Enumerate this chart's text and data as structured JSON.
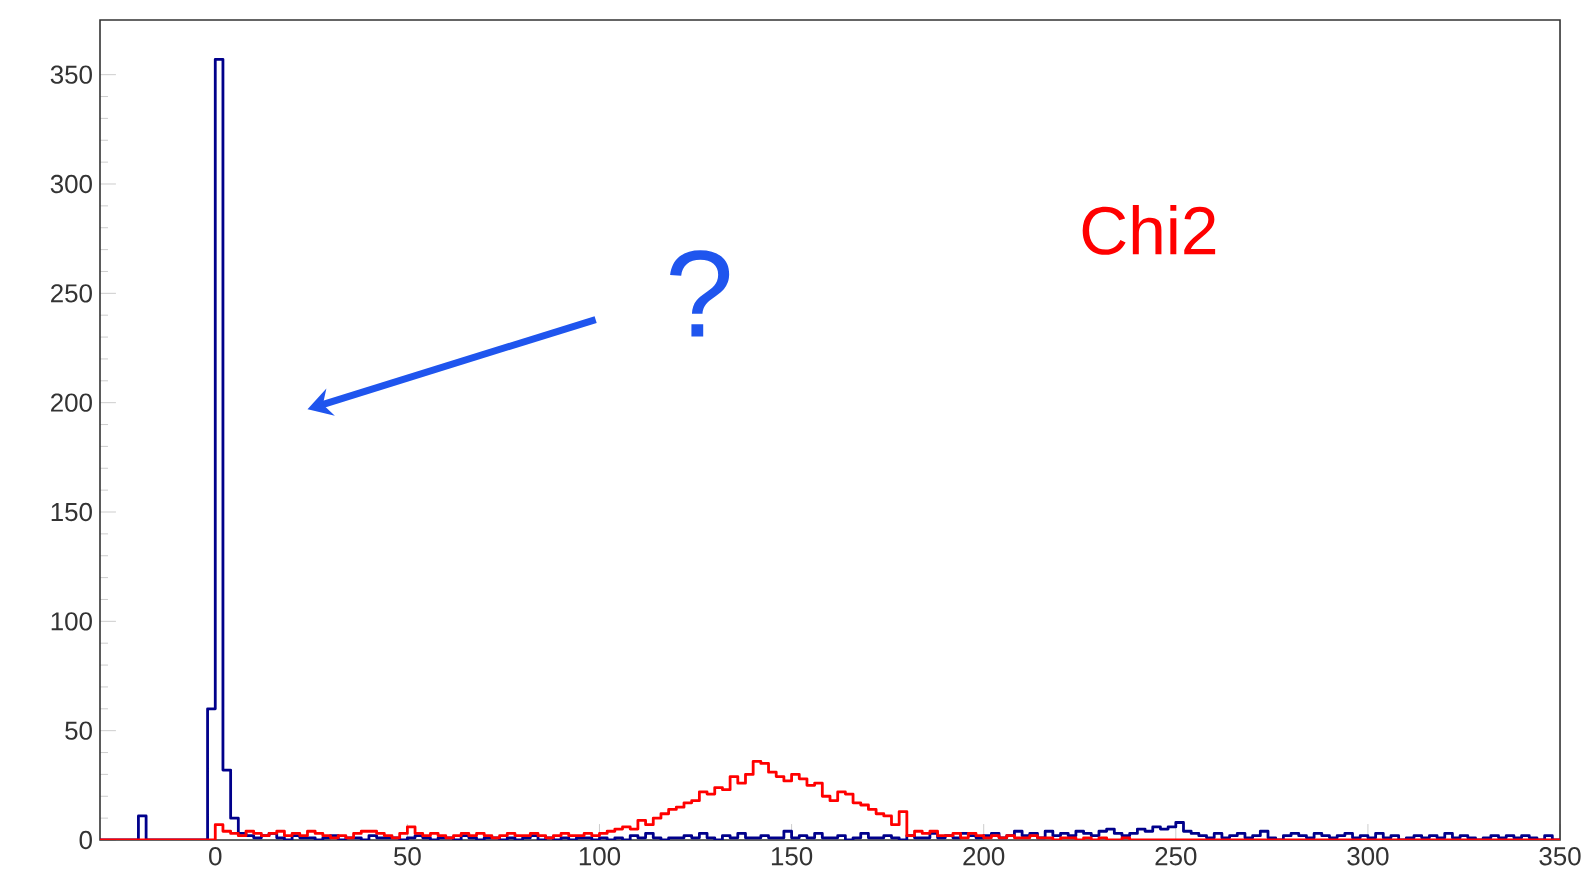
{
  "chart_data": {
    "type": "histogram",
    "bins": [
      -30,
      -28,
      -26,
      -24,
      -22,
      -20,
      -18,
      -16,
      -14,
      -12,
      -10,
      -8,
      -6,
      -4,
      -2,
      0,
      2,
      4,
      6,
      8,
      10,
      12,
      14,
      16,
      18,
      20,
      22,
      24,
      26,
      28,
      30,
      32,
      34,
      36,
      38,
      40,
      42,
      44,
      46,
      48,
      50,
      52,
      54,
      56,
      58,
      60,
      62,
      64,
      66,
      68,
      70,
      72,
      74,
      76,
      78,
      80,
      82,
      84,
      86,
      88,
      90,
      92,
      94,
      96,
      98,
      100,
      102,
      104,
      106,
      108,
      110,
      112,
      114,
      116,
      118,
      120,
      122,
      124,
      126,
      128,
      130,
      132,
      134,
      136,
      138,
      140,
      142,
      144,
      146,
      148,
      150,
      152,
      154,
      156,
      158,
      160,
      162,
      164,
      166,
      168,
      170,
      172,
      174,
      176,
      178,
      180,
      182,
      184,
      186,
      188,
      190,
      192,
      194,
      196,
      198,
      200,
      202,
      204,
      206,
      208,
      210,
      212,
      214,
      216,
      218,
      220,
      222,
      224,
      226,
      228,
      230,
      232,
      234,
      236,
      238,
      240,
      242,
      244,
      246,
      248,
      250,
      252,
      254,
      256,
      258,
      260,
      262,
      264,
      266,
      268,
      270,
      272,
      274,
      276,
      278,
      280,
      282,
      284,
      286,
      288,
      290,
      292,
      294,
      296,
      298,
      300,
      302,
      304,
      306,
      308,
      310,
      312,
      314,
      316,
      318,
      320,
      322,
      324,
      326,
      328,
      330,
      332,
      334,
      336,
      338,
      340,
      342,
      344,
      346,
      348,
      350
    ],
    "series": [
      {
        "color": "#00008b",
        "values": [
          0,
          0,
          0,
          0,
          0,
          11,
          0,
          0,
          0,
          0,
          0,
          0,
          0,
          0,
          60,
          357,
          32,
          10,
          3,
          2,
          1,
          2,
          3,
          1,
          0,
          2,
          1,
          1,
          0,
          1,
          2,
          0,
          1,
          1,
          0,
          2,
          1,
          1,
          1,
          0,
          1,
          2,
          1,
          0,
          1,
          1,
          0,
          2,
          1,
          0,
          1,
          1,
          0,
          1,
          0,
          1,
          2,
          0,
          1,
          0,
          1,
          0,
          1,
          1,
          0,
          1,
          0,
          1,
          0,
          2,
          1,
          3,
          1,
          0,
          1,
          1,
          2,
          1,
          3,
          1,
          0,
          2,
          1,
          3,
          1,
          1,
          2,
          1,
          1,
          4,
          1,
          2,
          1,
          3,
          1,
          1,
          2,
          0,
          1,
          3,
          1,
          1,
          2,
          1,
          0,
          2,
          1,
          1,
          3,
          1,
          2,
          1,
          3,
          2,
          1,
          2,
          3,
          1,
          2,
          4,
          2,
          3,
          1,
          4,
          2,
          3,
          2,
          4,
          3,
          2,
          4,
          5,
          3,
          2,
          3,
          5,
          4,
          6,
          5,
          6,
          8,
          4,
          3,
          2,
          1,
          3,
          1,
          2,
          3,
          1,
          2,
          4,
          1,
          0,
          2,
          3,
          2,
          1,
          3,
          2,
          1,
          2,
          3,
          1,
          2,
          1,
          3,
          1,
          2,
          0,
          1,
          2,
          1,
          2,
          1,
          3,
          1,
          2,
          1,
          0,
          1,
          2,
          1,
          2,
          1,
          2,
          1,
          0,
          2,
          0
        ]
      },
      {
        "name": "Chi2",
        "color": "#ff0000",
        "values": [
          0,
          0,
          0,
          0,
          0,
          0,
          0,
          0,
          0,
          0,
          0,
          0,
          0,
          0,
          0,
          7,
          4,
          3,
          2,
          4,
          3,
          2,
          3,
          4,
          2,
          3,
          2,
          4,
          3,
          2,
          1,
          2,
          1,
          3,
          4,
          4,
          3,
          2,
          1,
          3,
          6,
          3,
          2,
          3,
          2,
          1,
          2,
          3,
          2,
          3,
          2,
          1,
          2,
          3,
          2,
          2,
          3,
          2,
          1,
          2,
          3,
          2,
          2,
          3,
          2,
          3,
          4,
          5,
          6,
          5,
          9,
          7,
          10,
          12,
          14,
          15,
          17,
          18,
          22,
          21,
          24,
          23,
          29,
          26,
          30,
          36,
          35,
          31,
          29,
          27,
          30,
          28,
          25,
          26,
          20,
          18,
          22,
          21,
          17,
          16,
          14,
          12,
          11,
          7,
          13,
          2,
          4,
          3,
          4,
          2,
          2,
          3,
          1,
          3,
          2,
          1,
          2,
          1,
          2,
          1,
          1,
          2,
          1,
          1,
          0,
          1,
          1,
          0,
          1,
          0,
          1,
          0,
          0,
          1,
          0,
          0,
          0,
          0,
          0,
          0,
          0,
          0,
          0,
          0,
          0,
          0,
          0,
          0,
          0,
          0,
          0,
          0,
          0,
          0,
          0,
          0,
          0,
          0,
          0,
          0,
          0,
          0,
          0,
          0,
          0,
          0,
          0,
          0,
          0,
          0,
          0,
          0,
          0,
          0,
          0,
          0,
          0,
          0,
          0,
          0,
          0,
          0,
          0,
          0,
          0,
          0,
          0,
          0,
          0,
          0
        ]
      }
    ],
    "xlim": [
      -30,
      350
    ],
    "xticks": [
      {
        "value": -20,
        "label": null
      },
      0,
      50,
      100,
      150,
      200,
      250,
      300,
      350
    ],
    "ylim": [
      0,
      375
    ],
    "yticks": [
      0,
      50,
      100,
      150,
      200,
      250,
      300,
      350
    ],
    "annotations": [
      "?"
    ]
  }
}
